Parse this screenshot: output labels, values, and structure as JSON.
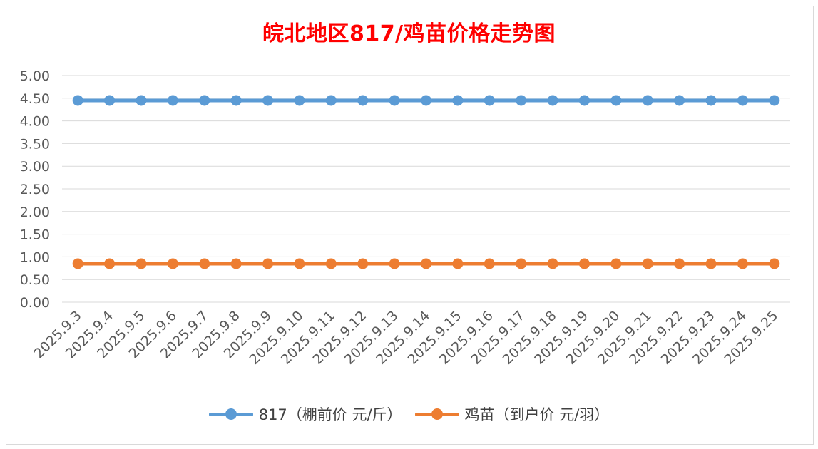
{
  "colors": {
    "title": "#ff0000",
    "series1": "#5b9bd5",
    "series2": "#ed7d31",
    "grid": "#d9d9d9",
    "text": "#595959"
  },
  "chart_data": {
    "type": "line",
    "title": "皖北地区817/鸡苗价格走势图",
    "xlabel": "",
    "ylabel": "",
    "ylim": [
      0,
      5
    ],
    "y_ticks": [
      "0.00",
      "0.50",
      "1.00",
      "1.50",
      "2.00",
      "2.50",
      "3.00",
      "3.50",
      "4.00",
      "4.50",
      "5.00"
    ],
    "categories": [
      "2025.9.3",
      "2025.9.4",
      "2025.9.5",
      "2025.9.6",
      "2025.9.7",
      "2025.9.8",
      "2025.9.9",
      "2025.9.10",
      "2025.9.11",
      "2025.9.12",
      "2025.9.13",
      "2025.9.14",
      "2025.9.15",
      "2025.9.16",
      "2025.9.17",
      "2025.9.18",
      "2025.9.19",
      "2025.9.20",
      "2025.9.21",
      "2025.9.22",
      "2025.9.23",
      "2025.9.24",
      "2025.9.25"
    ],
    "series": [
      {
        "name": "817（棚前价 元/斤）",
        "values": [
          4.45,
          4.45,
          4.45,
          4.45,
          4.45,
          4.45,
          4.45,
          4.45,
          4.45,
          4.45,
          4.45,
          4.45,
          4.45,
          4.45,
          4.45,
          4.45,
          4.45,
          4.45,
          4.45,
          4.45,
          4.45,
          4.45,
          4.45
        ]
      },
      {
        "name": "鸡苗（到户价 元/羽）",
        "values": [
          0.85,
          0.85,
          0.85,
          0.85,
          0.85,
          0.85,
          0.85,
          0.85,
          0.85,
          0.85,
          0.85,
          0.85,
          0.85,
          0.85,
          0.85,
          0.85,
          0.85,
          0.85,
          0.85,
          0.85,
          0.85,
          0.85,
          0.85
        ]
      }
    ],
    "grid": true,
    "legend_position": "bottom"
  }
}
